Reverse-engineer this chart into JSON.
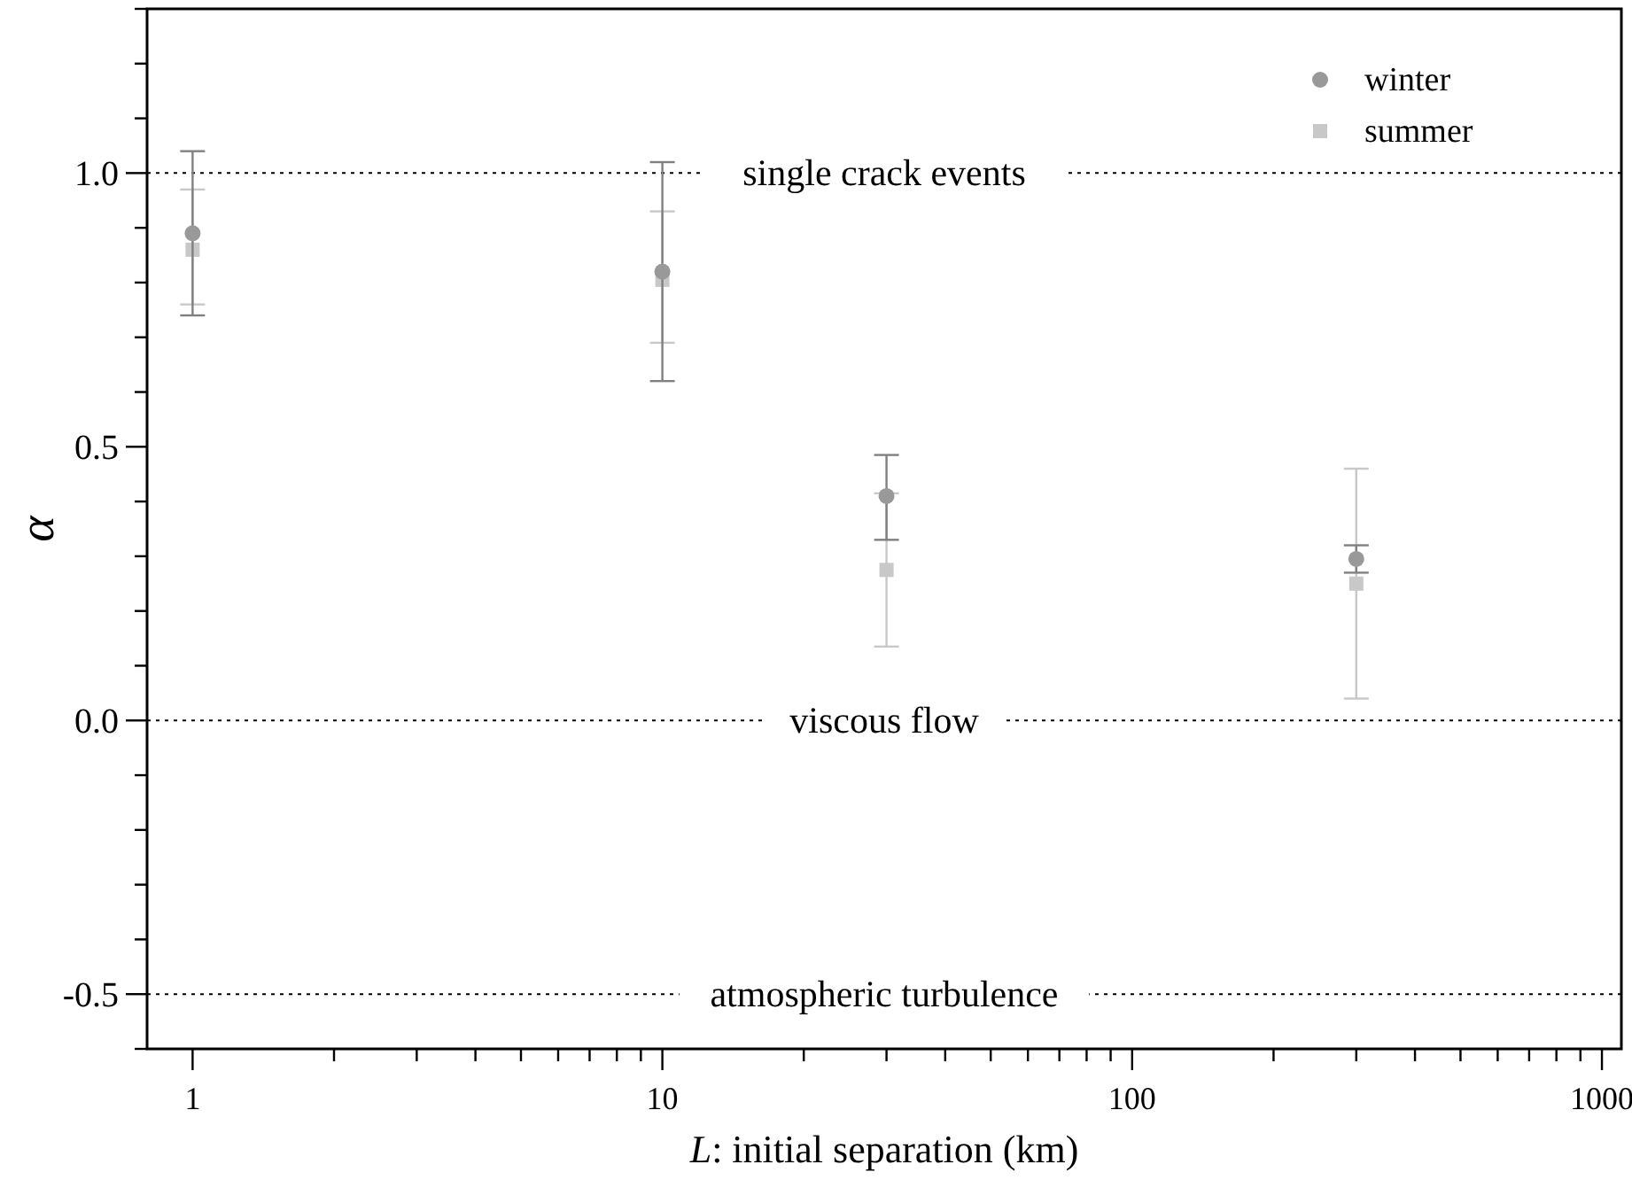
{
  "chart_data": {
    "type": "scatter",
    "xlabel": "L: initial separation (km)",
    "ylabel": "α",
    "log": "x",
    "legend": "top right",
    "x": [
      1,
      10,
      30,
      300
    ],
    "series": [
      {
        "name": "winter",
        "color": "#999999",
        "marker": "circle",
        "values": [
          0.89,
          0.82,
          0.41,
          0.295
        ],
        "errors": [
          [
            0.74,
            1.04
          ],
          [
            0.62,
            1.02
          ],
          [
            0.33,
            0.485
          ],
          [
            0.27,
            0.32
          ]
        ]
      },
      {
        "name": "summer",
        "color": "#c8c8c8",
        "marker": "square",
        "values": [
          0.86,
          0.805,
          0.275,
          0.25
        ],
        "errors": [
          [
            0.76,
            0.97
          ],
          [
            0.69,
            0.93
          ],
          [
            0.135,
            0.415
          ],
          [
            0.04,
            0.46
          ]
        ]
      }
    ],
    "xlim": [
      0.8,
      1100
    ],
    "xticks": [
      1,
      {
        "value": 2,
        "label": null
      },
      {
        "value": 3,
        "label": null
      },
      {
        "value": 4,
        "label": null
      },
      {
        "value": 5,
        "label": null
      },
      {
        "value": 6,
        "label": null
      },
      {
        "value": 7,
        "label": null
      },
      {
        "value": 8,
        "label": null
      },
      {
        "value": 9,
        "label": null
      },
      10,
      {
        "value": 20,
        "label": null
      },
      {
        "value": 30,
        "label": null
      },
      {
        "value": 40,
        "label": null
      },
      {
        "value": 50,
        "label": null
      },
      {
        "value": 60,
        "label": null
      },
      {
        "value": 70,
        "label": null
      },
      {
        "value": 80,
        "label": null
      },
      {
        "value": 90,
        "label": null
      },
      100,
      {
        "value": 200,
        "label": null
      },
      {
        "value": 300,
        "label": null
      },
      {
        "value": 400,
        "label": null
      },
      {
        "value": 500,
        "label": null
      },
      {
        "value": 600,
        "label": null
      },
      {
        "value": 700,
        "label": null
      },
      {
        "value": 800,
        "label": null
      },
      {
        "value": 900,
        "label": null
      },
      1000
    ],
    "ylim": [
      -0.6,
      1.3
    ],
    "yticks": [
      {
        "value": -0.6,
        "label": null
      },
      {
        "value": -0.5,
        "label": "-0.5"
      },
      {
        "value": -0.4,
        "label": null
      },
      {
        "value": -0.3,
        "label": null
      },
      {
        "value": -0.2,
        "label": null
      },
      {
        "value": -0.1,
        "label": null
      },
      {
        "value": 0,
        "label": "0.0"
      },
      {
        "value": 0.1,
        "label": null
      },
      {
        "value": 0.2,
        "label": null
      },
      {
        "value": 0.3,
        "label": null
      },
      {
        "value": 0.4,
        "label": null
      },
      {
        "value": 0.5,
        "label": "0.5"
      },
      {
        "value": 0.6,
        "label": null
      },
      {
        "value": 0.7,
        "label": null
      },
      {
        "value": 0.8,
        "label": null
      },
      {
        "value": 0.9,
        "label": null
      },
      {
        "value": 1.0,
        "label": "1.0"
      },
      {
        "value": 1.1,
        "label": null
      },
      {
        "value": 1.2,
        "label": null
      },
      {
        "value": 1.3,
        "label": null
      }
    ],
    "ref_lines": [
      {
        "axis": "y",
        "value": 1,
        "label": "single crack events",
        "color": "#000000",
        "line_style": "dotted"
      },
      {
        "axis": "y",
        "value": 0,
        "label": "viscous flow",
        "color": "#000000",
        "line_style": "dotted"
      },
      {
        "axis": "y",
        "value": -0.5,
        "label": "atmospheric turbulence",
        "color": "#000000",
        "line_style": "dotted"
      }
    ]
  }
}
